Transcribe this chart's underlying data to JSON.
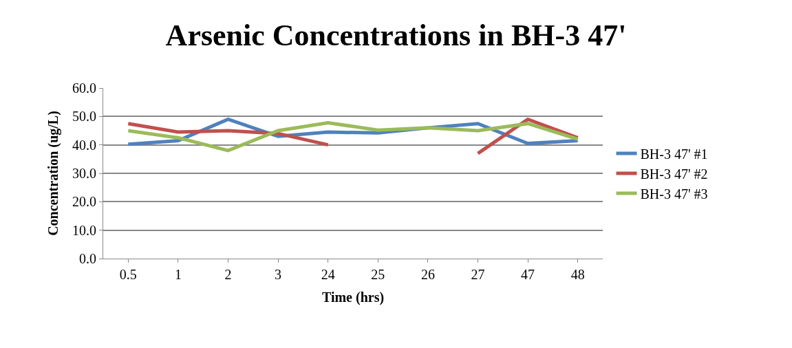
{
  "chart_data": {
    "type": "line",
    "title": "Arsenic Concentrations in BH-3 47'",
    "xlabel": "Time (hrs)",
    "ylabel": "Concentration (ug/L)",
    "categories": [
      "0.5",
      "1",
      "2",
      "3",
      "24",
      "25",
      "26",
      "27",
      "47",
      "48"
    ],
    "series": [
      {
        "name": "BH-3 47' #1",
        "color": "#4f81bd",
        "values": [
          40.2,
          41.5,
          49.0,
          43.0,
          44.5,
          44.2,
          46.0,
          47.5,
          40.5,
          41.5
        ]
      },
      {
        "name": "BH-3 47' #2",
        "color": "#c0504d",
        "values": [
          47.5,
          44.5,
          45.0,
          44.0,
          40.0,
          null,
          null,
          37.0,
          49.0,
          42.5
        ]
      },
      {
        "name": "BH-3 47' #3",
        "color": "#9bbb59",
        "values": [
          45.0,
          42.5,
          38.0,
          45.0,
          47.8,
          45.2,
          46.0,
          45.0,
          47.5,
          42.0
        ]
      }
    ],
    "ylim": [
      0,
      60
    ],
    "yticks": [
      {
        "value": 0,
        "label": "0.0"
      },
      {
        "value": 10,
        "label": "10.0"
      },
      {
        "value": 20,
        "label": "20.0"
      },
      {
        "value": 30,
        "label": "30.0"
      },
      {
        "value": 40,
        "label": "40.0"
      },
      {
        "value": 50,
        "label": "50.0"
      },
      {
        "value": 60,
        "label": "60.0"
      }
    ],
    "grid": "y",
    "legend": "right",
    "marker": "none",
    "line_style": "solid"
  }
}
